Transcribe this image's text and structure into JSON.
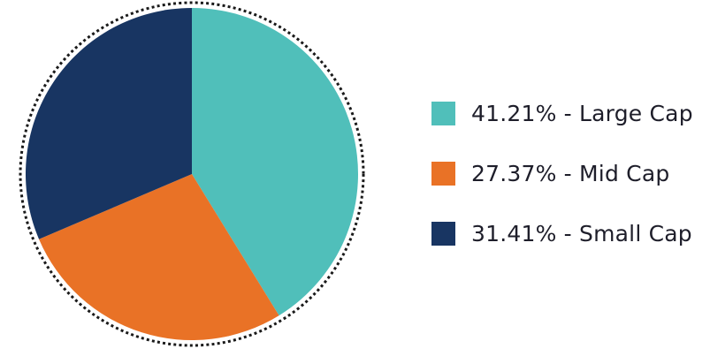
{
  "chart_data": {
    "type": "pie",
    "categories": [
      "Large Cap",
      "Mid Cap",
      "Small Cap"
    ],
    "values": [
      41.21,
      27.37,
      31.41
    ],
    "labels": [
      "41.21% - Large Cap",
      "27.37% - Mid Cap",
      "31.41% - Small Cap"
    ],
    "colors": [
      "#50bfba",
      "#e97226",
      "#183562"
    ],
    "start_angle": "12 o'clock, clockwise",
    "legend_position": "right",
    "border": "dotted outline"
  }
}
